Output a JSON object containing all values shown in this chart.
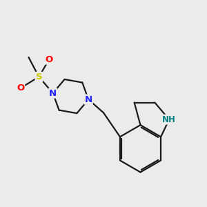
{
  "background_color": "#ebebeb",
  "bond_color": "#1a1a1a",
  "atom_colors": {
    "N": "#2020ff",
    "S": "#cccc00",
    "O": "#ff0000",
    "NH": "#008080",
    "C": "#1a1a1a"
  },
  "figsize": [
    3.0,
    3.0
  ],
  "dpi": 100
}
